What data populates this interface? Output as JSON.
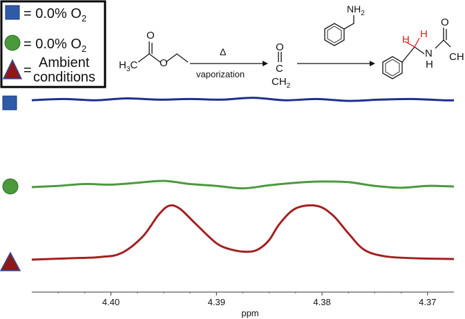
{
  "legend": {
    "items": [
      {
        "marker": "square",
        "color": "#2e5ba8",
        "label_eq": "=",
        "label": "0.0% O",
        "subscript": "2"
      },
      {
        "marker": "circle",
        "color": "#4a9a3c",
        "label_eq": "=",
        "label": "0.0% O",
        "subscript": "2"
      },
      {
        "marker": "triangle",
        "color": "#8b1a1a",
        "label_eq": "=",
        "label_line1": "Ambient",
        "label_line2": "conditions"
      }
    ]
  },
  "scheme": {
    "reactant": {
      "left_label": "H",
      "left_sub": "3",
      "left_tail": "C",
      "oxygen": "O",
      "carbonyl_o": "O"
    },
    "arrow1": {
      "above": "Δ",
      "below": "vaporization"
    },
    "intermediate": {
      "o": "O",
      "c": "C",
      "ch": "CH",
      "ch_sub": "2"
    },
    "reagent": {
      "nh": "NH",
      "nh_sub": "2"
    },
    "product": {
      "h1": "H",
      "h2": "H",
      "n": "N",
      "nh_h": "H",
      "o": "O",
      "ch": "CH"
    },
    "colors": {
      "highlight": "#e0201c"
    }
  },
  "chart_data": {
    "type": "line",
    "xlabel": "ppm",
    "x_ticks": [
      4.4,
      4.39,
      4.38,
      4.37
    ],
    "x_tick_labels": [
      "4.40",
      "4.39",
      "4.38",
      "4.37"
    ],
    "xlim": [
      4.4075,
      4.3675
    ],
    "series": [
      {
        "marker": "square",
        "color": "#1c2e8f",
        "x": [
          4.4075,
          4.4045,
          4.4015,
          4.3985,
          4.3955,
          4.3925,
          4.3895,
          4.3865,
          4.3835,
          4.3805,
          4.3775,
          4.3745,
          4.3715,
          4.3685,
          4.3675
        ],
        "y": [
          0.02,
          0.04,
          0.02,
          0.05,
          0.03,
          0.04,
          0.03,
          0.06,
          0.02,
          0.04,
          0.01,
          0.03,
          0.04,
          0.02,
          0.02
        ]
      },
      {
        "marker": "circle",
        "color": "#4a9a3c",
        "x": [
          4.4075,
          4.405,
          4.4025,
          4.4,
          4.3975,
          4.395,
          4.3925,
          4.39,
          4.3875,
          4.385,
          4.3825,
          4.38,
          4.3775,
          4.375,
          4.3725,
          4.37,
          4.3675
        ],
        "y": [
          0.0,
          0.02,
          0.05,
          0.04,
          0.07,
          0.1,
          0.05,
          0.02,
          -0.02,
          0.03,
          0.07,
          0.09,
          0.08,
          0.02,
          -0.01,
          0.02,
          0.01
        ]
      },
      {
        "marker": "triangle",
        "color": "#a32020",
        "x": [
          4.4075,
          4.404,
          4.401,
          4.399,
          4.397,
          4.3955,
          4.3945,
          4.3935,
          4.392,
          4.39,
          4.3885,
          4.387,
          4.386,
          4.385,
          4.384,
          4.3825,
          4.3805,
          4.379,
          4.3775,
          4.376,
          4.374,
          4.371,
          4.3675
        ],
        "y": [
          0.0,
          0.02,
          0.04,
          0.1,
          0.35,
          0.68,
          0.82,
          0.78,
          0.55,
          0.25,
          0.15,
          0.12,
          0.16,
          0.3,
          0.55,
          0.78,
          0.82,
          0.68,
          0.4,
          0.15,
          0.05,
          0.02,
          0.01
        ]
      }
    ]
  }
}
